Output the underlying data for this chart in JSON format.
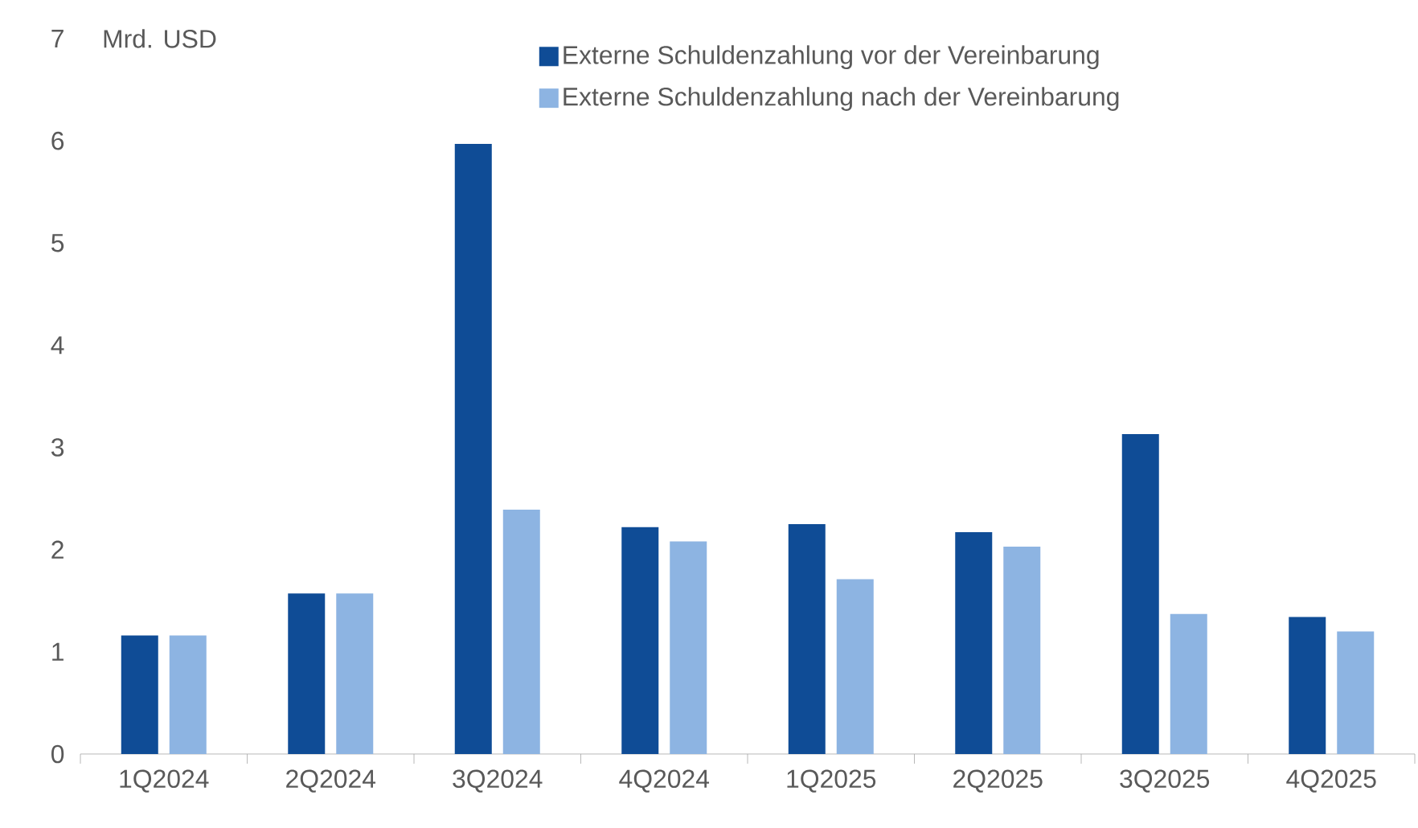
{
  "chart_data": {
    "type": "bar",
    "ylabel": "Mrd. USD",
    "categories": [
      "1Q2024",
      "2Q2024",
      "3Q2024",
      "4Q2024",
      "1Q2025",
      "2Q2025",
      "3Q2025",
      "4Q2025"
    ],
    "series": [
      {
        "name": "Externe Schuldenzahlung vor der Vereinbarung",
        "color": "#0f4c96",
        "values": [
          1.16,
          1.57,
          5.97,
          2.22,
          2.25,
          2.17,
          3.13,
          1.34
        ]
      },
      {
        "name": "Externe Schuldenzahlung nach der Vereinbarung",
        "color": "#8db4e2",
        "values": [
          1.16,
          1.57,
          2.39,
          2.08,
          1.71,
          2.03,
          1.37,
          1.2
        ]
      }
    ],
    "ylim": [
      0,
      7
    ],
    "yticks": [
      0,
      1,
      2,
      3,
      4,
      5,
      6,
      7
    ],
    "grid": false,
    "legend": "top right"
  }
}
